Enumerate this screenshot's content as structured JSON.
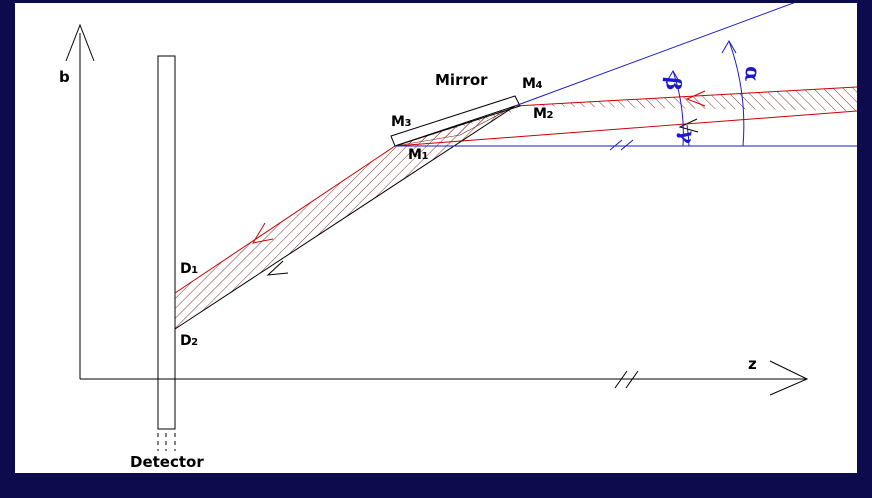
{
  "labels": {
    "b": "b",
    "z": "z",
    "mirror": "Mirror",
    "detector": "Detector",
    "m1": "M1",
    "m2": "M2",
    "m3": "M3",
    "m4": "M4",
    "d1": "D1",
    "d2": "D2",
    "alpha": "α",
    "beta": "β",
    "gamma": "γ"
  },
  "colors": {
    "background": "#0b0b4e",
    "panel": "#ffffff",
    "lines": "#000000",
    "rays": "#cc0000",
    "angles": "#1a1acc",
    "hatch": "#7a1a1a"
  }
}
